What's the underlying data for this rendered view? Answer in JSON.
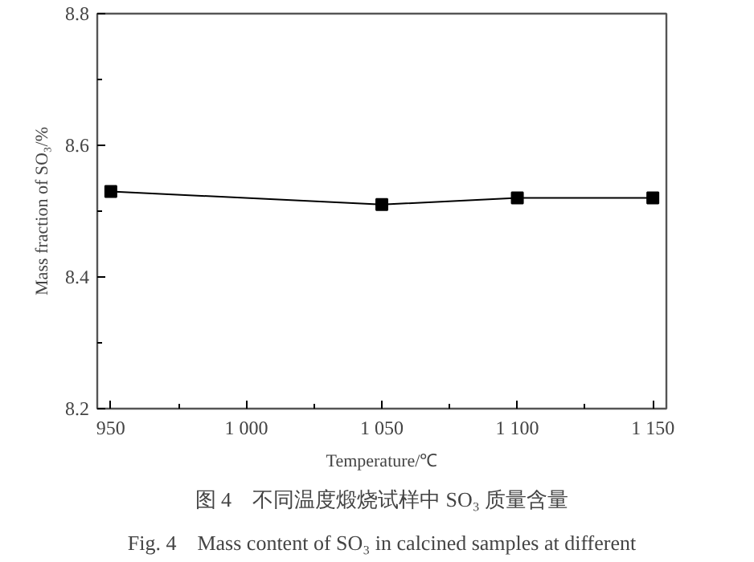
{
  "chart_data": {
    "type": "line",
    "xlabel": "Temperature/℃",
    "ylabel": "Mass fraction of SO₃/%",
    "x": [
      950,
      1050,
      1100,
      1150
    ],
    "series": [
      {
        "color": "#000000",
        "values": [
          8.53,
          8.51,
          8.52,
          8.52
        ]
      }
    ],
    "xlim": [
      945,
      1155
    ],
    "ylim": [
      8.2,
      8.8
    ],
    "xticks": [
      950,
      {
        "value": 975,
        "label": null
      },
      {
        "value": 1000,
        "label": "1 000"
      },
      {
        "value": 1025,
        "label": null
      },
      {
        "value": 1050,
        "label": "1 050"
      },
      {
        "value": 1075,
        "label": null
      },
      {
        "value": 1100,
        "label": "1 100"
      },
      {
        "value": 1125,
        "label": null
      },
      {
        "value": 1150,
        "label": "1 150"
      }
    ],
    "yticks": [
      8.2,
      {
        "value": 8.3,
        "label": null
      },
      8.4,
      {
        "value": 8.5,
        "label": null
      },
      8.6,
      {
        "value": 8.7,
        "label": null
      },
      8.8
    ],
    "marker": "square",
    "line_style": "solid",
    "grid": false,
    "annotations": [
      "图 4　不同温度煅烧试样中 SO₃ 质量含量",
      "Fig. 4　Mass content of SO₃ in calcined samples at different"
    ]
  }
}
